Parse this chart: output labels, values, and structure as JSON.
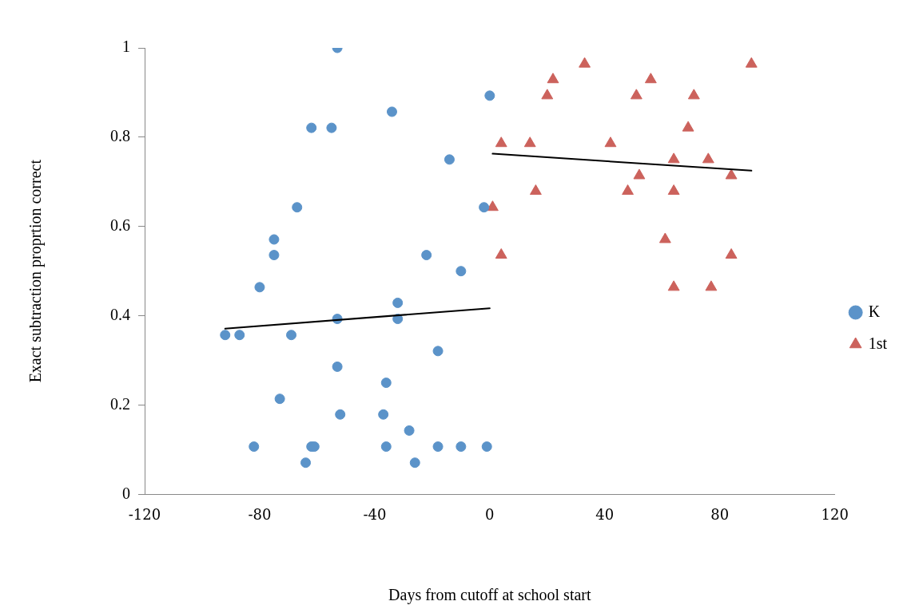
{
  "chart_data": {
    "type": "scatter",
    "xlabel": "Days from cutoff at school start",
    "ylabel": "Exact subtraction proprtion correct",
    "xlim": [
      -120,
      120
    ],
    "xticks": [
      -120,
      -80,
      -40,
      0,
      40,
      80,
      120
    ],
    "ylim": [
      0,
      1
    ],
    "yticks": [
      0,
      0.2,
      0.4,
      0.6,
      0.8,
      1
    ],
    "grid": false,
    "legend": "right",
    "series": [
      {
        "name": "K",
        "color": "#5b93c9",
        "marker": "circle",
        "x": [
          -53,
          0,
          -34,
          -62,
          -55,
          -14,
          -67,
          -2,
          -75,
          -75,
          -22,
          -10,
          -80,
          -32,
          -53,
          -32,
          -92,
          -87,
          -69,
          -18,
          -53,
          -36,
          -73,
          -52,
          -37,
          -28,
          -82,
          -62,
          -61,
          -36,
          -18,
          -10,
          -1,
          -64,
          -26
        ],
        "values": [
          1,
          0.893,
          0.857,
          0.821,
          0.821,
          0.75,
          0.643,
          0.643,
          0.571,
          0.536,
          0.536,
          0.5,
          0.464,
          0.429,
          0.393,
          0.393,
          0.357,
          0.357,
          0.357,
          0.321,
          0.286,
          0.25,
          0.214,
          0.179,
          0.179,
          0.143,
          0.107,
          0.107,
          0.107,
          0.107,
          0.107,
          0.107,
          0.107,
          0.071,
          0.071
        ]
      },
      {
        "name": "1st",
        "color": "#cc625c",
        "marker": "triangle",
        "x": [
          1,
          4,
          14,
          42,
          20,
          22,
          33,
          56,
          51,
          71,
          91,
          69,
          64,
          76,
          52,
          84,
          16,
          48,
          64,
          4,
          84,
          61,
          64,
          77
        ],
        "values": [
          0.643,
          0.786,
          0.786,
          0.786,
          0.893,
          0.929,
          0.964,
          0.929,
          0.893,
          0.893,
          0.964,
          0.821,
          0.75,
          0.75,
          0.714,
          0.714,
          0.679,
          0.679,
          0.679,
          0.536,
          0.536,
          0.571,
          0.464,
          0.464
        ]
      },
      {
        "type": "line",
        "color": "#000000",
        "marker": "none",
        "x": [
          -92,
          0
        ],
        "values": [
          0.371,
          0.417
        ]
      },
      {
        "type": "line",
        "color": "#000000",
        "marker": "none",
        "x": [
          1,
          91
        ],
        "values": [
          0.763,
          0.725
        ]
      }
    ]
  }
}
